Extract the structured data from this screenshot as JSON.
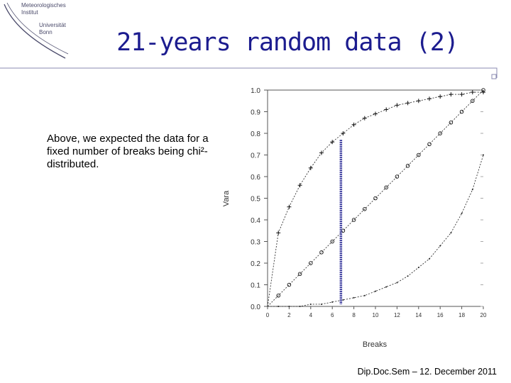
{
  "logo": {
    "line1": "Meteorologisches",
    "line2": "Institut",
    "line3": "Universität",
    "line4": "Bonn"
  },
  "slide": {
    "title": "21-years random data (2)",
    "body_text": "Above, we expected the data for a fixed number of breaks being chi²-distributed.",
    "footer": "Dip.Doc.Sem – 12. December 2011"
  },
  "colors": {
    "title": "#1c1c8f",
    "highlight_line": "#4040a0",
    "divider": "#8a8ab0"
  },
  "chart_data": {
    "type": "line",
    "xlabel": "Breaks",
    "ylabel": "Vara",
    "xlim": [
      0,
      20
    ],
    "ylim": [
      0,
      1
    ],
    "x_ticks": [
      "0",
      "2",
      "4",
      "6",
      "8",
      "10",
      "12",
      "14",
      "16",
      "18",
      "20"
    ],
    "y_ticks": [
      "0.0",
      "0.1",
      "0.2",
      "0.3",
      "0.4",
      "0.5",
      "0.6",
      "0.7",
      "0.8",
      "0.9",
      "1.0"
    ],
    "highlight_x": 6.8,
    "series": [
      {
        "marker": "plus",
        "x": [
          1,
          2,
          3,
          4,
          5,
          6,
          7,
          8,
          9,
          10,
          11,
          12,
          13,
          14,
          15,
          16,
          17,
          18,
          19,
          20
        ],
        "values": [
          0.34,
          0.46,
          0.56,
          0.64,
          0.71,
          0.76,
          0.8,
          0.84,
          0.87,
          0.89,
          0.91,
          0.93,
          0.94,
          0.95,
          0.96,
          0.97,
          0.98,
          0.98,
          0.99,
          0.99
        ]
      },
      {
        "marker": "circle",
        "x": [
          1,
          2,
          3,
          4,
          5,
          6,
          7,
          8,
          9,
          10,
          11,
          12,
          13,
          14,
          15,
          16,
          17,
          18,
          19,
          20
        ],
        "values": [
          0.05,
          0.1,
          0.15,
          0.2,
          0.25,
          0.3,
          0.35,
          0.4,
          0.45,
          0.5,
          0.55,
          0.6,
          0.65,
          0.7,
          0.75,
          0.8,
          0.85,
          0.9,
          0.95,
          1.0
        ]
      },
      {
        "marker": "dot",
        "x": [
          1,
          2,
          3,
          4,
          5,
          6,
          7,
          8,
          9,
          10,
          11,
          12,
          13,
          14,
          15,
          16,
          17,
          18,
          19,
          20
        ],
        "values": [
          0.0,
          0.0,
          0.0,
          0.01,
          0.01,
          0.02,
          0.03,
          0.04,
          0.05,
          0.07,
          0.09,
          0.11,
          0.14,
          0.18,
          0.22,
          0.28,
          0.34,
          0.43,
          0.54,
          0.7
        ]
      }
    ]
  }
}
